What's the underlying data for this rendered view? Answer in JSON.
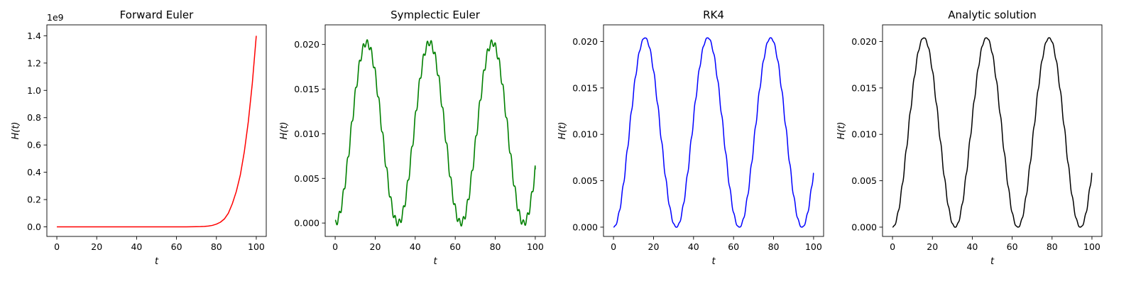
{
  "chart_data": [
    {
      "type": "line",
      "title": "Forward Euler",
      "xlabel": "t",
      "ylabel": "H(t)",
      "xlim": [
        -5,
        105
      ],
      "ylim": [
        -70000000.0,
        1480000000.0
      ],
      "x_ticks": [
        0,
        20,
        40,
        60,
        80,
        100
      ],
      "x_tick_labels": [
        "0",
        "20",
        "40",
        "60",
        "80",
        "100"
      ],
      "y_ticks": [
        0.0,
        200000000.0,
        400000000.0,
        600000000.0,
        800000000.0,
        1000000000.0,
        1200000000.0,
        1400000000.0
      ],
      "y_tick_labels": [
        "0.0",
        "0.2",
        "0.4",
        "0.6",
        "0.8",
        "1.0",
        "1.2",
        "1.4"
      ],
      "y_offset_label": "1e9",
      "grid": false,
      "series": [
        {
          "color": "#ff0000",
          "x": [
            0,
            10,
            20,
            30,
            40,
            50,
            60,
            65,
            70,
            72,
            74,
            76,
            78,
            80,
            82,
            84,
            86,
            88,
            90,
            92,
            94,
            96,
            98,
            100
          ],
          "y": [
            0,
            0,
            0,
            0,
            0,
            0,
            0,
            0,
            1200000.0,
            2000000.0,
            3500000.0,
            6000000.0,
            11000000.0,
            20000000.0,
            34000000.0,
            58000000.0,
            100000000.0,
            170000000.0,
            260000000.0,
            380000000.0,
            550000000.0,
            770000000.0,
            1050000000.0,
            1400000000.0
          ]
        }
      ]
    },
    {
      "type": "line",
      "title": "Symplectic Euler",
      "xlabel": "t",
      "ylabel": "H(t)",
      "xlim": [
        -5,
        105
      ],
      "ylim": [
        -0.0015,
        0.0222
      ],
      "x_ticks": [
        0,
        20,
        40,
        60,
        80,
        100
      ],
      "x_tick_labels": [
        "0",
        "20",
        "40",
        "60",
        "80",
        "100"
      ],
      "y_ticks": [
        0.0,
        0.005,
        0.01,
        0.015,
        0.02
      ],
      "y_tick_labels": [
        "0.000",
        "0.005",
        "0.010",
        "0.015",
        "0.020"
      ],
      "grid": false,
      "series": [
        {
          "color": "#008000",
          "function": "H(t) = 0.0101 - 0.0101*cos(0.2*t) + 0.0006*cos(3.1*t)*(0.6+0.4*abs(sin(0.2*t)))",
          "x_range": [
            0,
            100
          ],
          "y_at_100": 0.006
        }
      ]
    },
    {
      "type": "line",
      "title": "RK4",
      "xlabel": "t",
      "ylabel": "H(t)",
      "xlim": [
        -5,
        105
      ],
      "ylim": [
        -0.001,
        0.0218
      ],
      "x_ticks": [
        0,
        20,
        40,
        60,
        80,
        100
      ],
      "x_tick_labels": [
        "0",
        "20",
        "40",
        "60",
        "80",
        "100"
      ],
      "y_ticks": [
        0.0,
        0.005,
        0.01,
        0.015,
        0.02
      ],
      "y_tick_labels": [
        "0.000",
        "0.005",
        "0.010",
        "0.015",
        "0.020"
      ],
      "grid": false,
      "series": [
        {
          "color": "#0000ff",
          "function": "H(t) = 0.0102 - 0.0102*cos(0.2*t) + small ripple of period ~2",
          "x_range": [
            0,
            100
          ],
          "y_at_100": 0.0058
        }
      ]
    },
    {
      "type": "line",
      "title": "Analytic solution",
      "xlabel": "t",
      "ylabel": "H(t)",
      "xlim": [
        -5,
        105
      ],
      "ylim": [
        -0.001,
        0.0218
      ],
      "x_ticks": [
        0,
        20,
        40,
        60,
        80,
        100
      ],
      "x_tick_labels": [
        "0",
        "20",
        "40",
        "60",
        "80",
        "100"
      ],
      "y_ticks": [
        0.0,
        0.005,
        0.01,
        0.015,
        0.02
      ],
      "y_tick_labels": [
        "0.000",
        "0.005",
        "0.010",
        "0.015",
        "0.020"
      ],
      "grid": false,
      "series": [
        {
          "color": "#000000",
          "function": "H(t) = 0.0102 - 0.0102*cos(0.2*t) + small ripple of period ~2",
          "x_range": [
            0,
            100
          ],
          "y_at_100": 0.0058
        }
      ]
    }
  ]
}
